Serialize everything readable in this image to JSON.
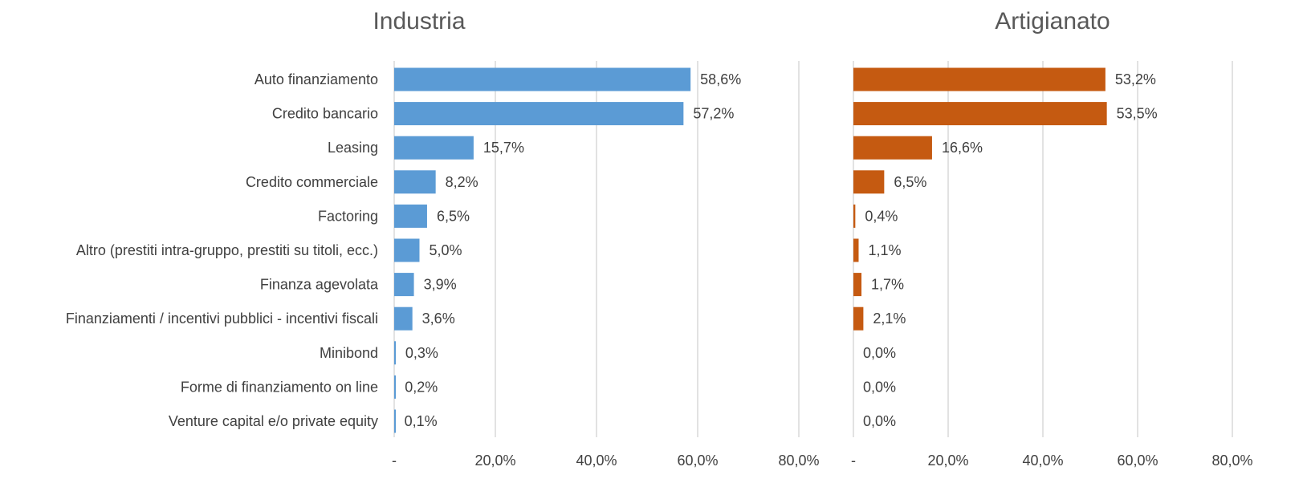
{
  "chart_data": [
    {
      "type": "bar",
      "orientation": "horizontal",
      "title": "Industria",
      "categories": [
        "Auto finanziamento",
        "Credito bancario",
        "Leasing",
        "Credito commerciale",
        "Factoring",
        "Altro (prestiti intra-gruppo, prestiti su titoli, ecc.)",
        "Finanza agevolata",
        "Finanziamenti / incentivi pubblici - incentivi fiscali",
        "Minibond",
        "Forme di finanziamento on line",
        "Venture capital e/o private equity"
      ],
      "values": [
        58.6,
        57.2,
        15.7,
        8.2,
        6.5,
        5.0,
        3.9,
        3.6,
        0.3,
        0.2,
        0.1
      ],
      "data_labels": [
        "58,6%",
        "57,2%",
        "15,7%",
        "8,2%",
        "6,5%",
        "5,0%",
        "3,9%",
        "3,6%",
        "0,3%",
        "0,2%",
        "0,1%"
      ],
      "color": "#5b9bd5",
      "xlim": [
        0,
        80
      ],
      "xticks": [
        0,
        20,
        40,
        60,
        80
      ],
      "xtick_labels": [
        "-",
        "20,0%",
        "40,0%",
        "60,0%",
        "80,0%"
      ],
      "grid": "vertical"
    },
    {
      "type": "bar",
      "orientation": "horizontal",
      "title": "Artigianato",
      "categories": [
        "Auto finanziamento",
        "Credito bancario",
        "Leasing",
        "Credito commerciale",
        "Factoring",
        "Altro (prestiti intra-gruppo, prestiti su titoli, ecc.)",
        "Finanza agevolata",
        "Finanziamenti / incentivi pubblici - incentivi fiscali",
        "Minibond",
        "Forme di finanziamento on line",
        "Venture capital e/o private equity"
      ],
      "values": [
        53.2,
        53.5,
        16.6,
        6.5,
        0.4,
        1.1,
        1.7,
        2.1,
        0.0,
        0.0,
        0.0
      ],
      "data_labels": [
        "53,2%",
        "53,5%",
        "16,6%",
        "6,5%",
        "0,4%",
        "1,1%",
        "1,7%",
        "2,1%",
        "0,0%",
        "0,0%",
        "0,0%"
      ],
      "color": "#c55a11",
      "xlim": [
        0,
        80
      ],
      "xticks": [
        0,
        20,
        40,
        60,
        80
      ],
      "xtick_labels": [
        "-",
        "20,0%",
        "40,0%",
        "60,0%",
        "80,0%"
      ],
      "grid": "vertical"
    }
  ]
}
